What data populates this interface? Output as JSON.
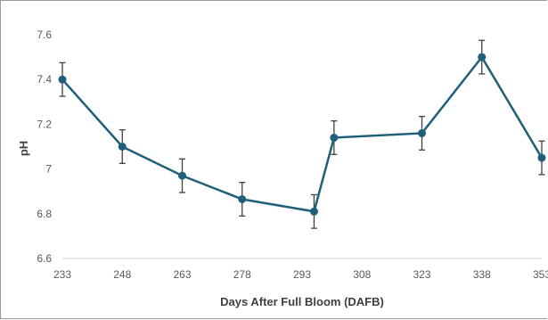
{
  "chart_data": {
    "type": "line",
    "title": "",
    "xlabel": "Days After Full Bloom (DAFB)",
    "ylabel": "pH",
    "x_ticks": [
      "233",
      "248",
      "263",
      "278",
      "293",
      "308",
      "323",
      "338",
      "353"
    ],
    "y_ticks": [
      "6.6",
      "6.8",
      "7",
      "7.2",
      "7.4",
      "7.6"
    ],
    "xlim": [
      233,
      353
    ],
    "ylim": [
      6.6,
      7.6
    ],
    "grid": "none",
    "series": [
      {
        "x": [
          233,
          248,
          263,
          278,
          296,
          301,
          323,
          338,
          353
        ],
        "y": [
          7.4,
          7.1,
          6.97,
          6.865,
          6.81,
          7.14,
          7.16,
          7.5,
          7.05
        ],
        "error": [
          0.075,
          0.075,
          0.075,
          0.075,
          0.075,
          0.075,
          0.075,
          0.075,
          0.075
        ],
        "color": "#1f5f7a"
      }
    ]
  }
}
